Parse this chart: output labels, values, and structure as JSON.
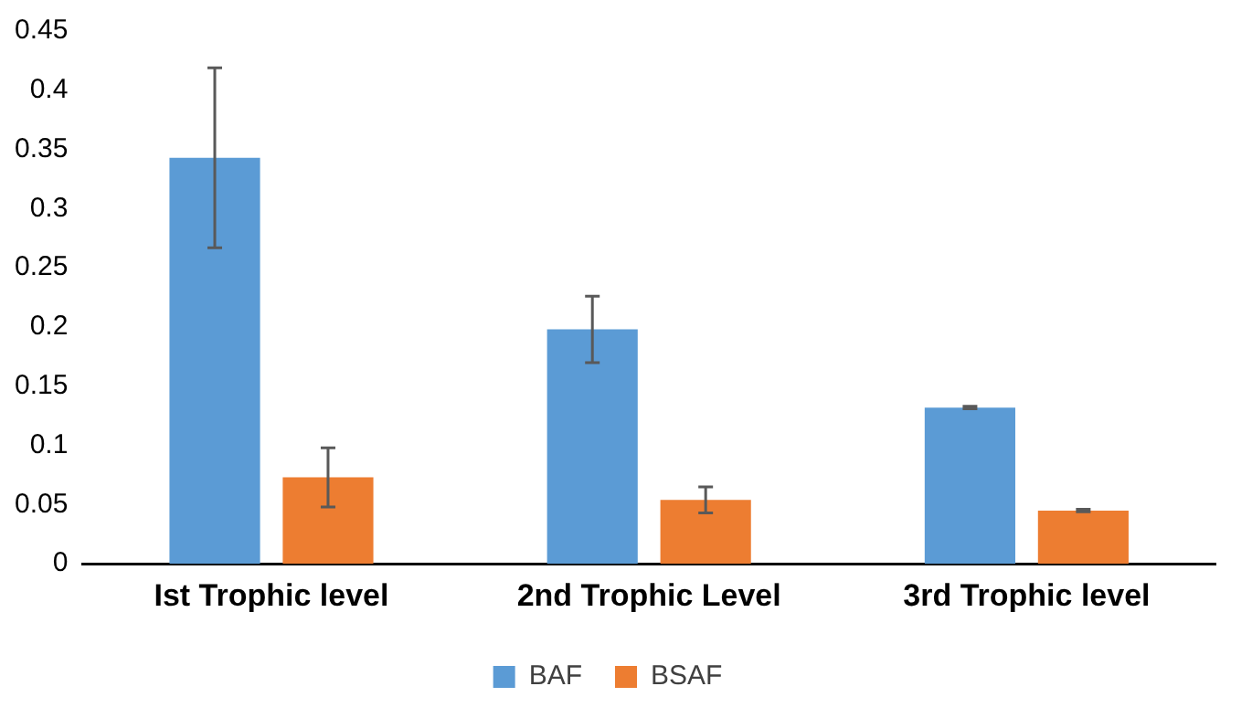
{
  "chart_data": {
    "type": "bar",
    "categories": [
      "Ist Trophic level",
      "2nd Trophic Level",
      "3rd Trophic level"
    ],
    "series": [
      {
        "name": "BAF",
        "color": "#5b9bd5",
        "values": [
          0.343,
          0.198,
          0.132
        ],
        "errors": [
          0.076,
          0.028,
          0.001
        ]
      },
      {
        "name": "BSAF",
        "color": "#ed7d31",
        "values": [
          0.073,
          0.054,
          0.045
        ],
        "errors": [
          0.025,
          0.011,
          0.001
        ]
      }
    ],
    "ylim": [
      0,
      0.45
    ],
    "yticks": [
      0,
      0.05,
      0.1,
      0.15,
      0.2,
      0.25,
      0.3,
      0.35,
      0.4,
      0.45
    ],
    "grid": false,
    "legend": "bottom"
  }
}
